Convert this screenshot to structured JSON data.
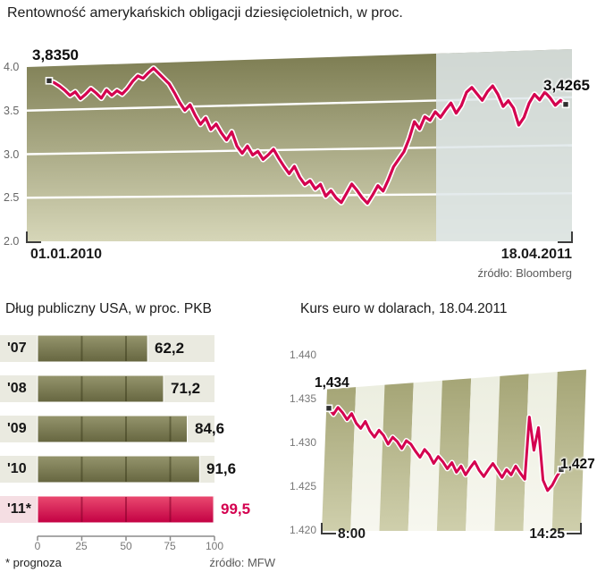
{
  "colors": {
    "red": "#d4004f",
    "olive": "#7b7b50",
    "overlay": "#dfe7ea"
  },
  "chart_data": [
    {
      "id": "bonds",
      "type": "line",
      "title": "Rentowność amerykańskich obligacji dziesięcioletnich, w proc.",
      "ylim": [
        2.0,
        4.0
      ],
      "y_ticks": [
        4.0,
        3.5,
        3.0,
        2.5,
        2.0
      ],
      "y_tick_labels": [
        "4.0",
        "3.5",
        "3.0",
        "2.5",
        "2.0"
      ],
      "x_start": "01.01.2010",
      "x_end": "18.04.2011",
      "first_value": 3.835,
      "first_label": "3,8350",
      "last_value": 3.4265,
      "last_label": "3,4265",
      "source": "źródło: Bloomberg",
      "grid": true,
      "legend": "none",
      "values": [
        3.835,
        3.81,
        3.77,
        3.72,
        3.66,
        3.7,
        3.62,
        3.67,
        3.73,
        3.68,
        3.62,
        3.71,
        3.65,
        3.7,
        3.66,
        3.72,
        3.8,
        3.86,
        3.83,
        3.89,
        3.94,
        3.88,
        3.82,
        3.76,
        3.66,
        3.55,
        3.46,
        3.52,
        3.4,
        3.3,
        3.37,
        3.24,
        3.3,
        3.2,
        3.12,
        3.21,
        3.05,
        2.97,
        3.05,
        2.95,
        2.99,
        2.9,
        2.95,
        3.01,
        2.91,
        2.82,
        2.74,
        2.82,
        2.7,
        2.62,
        2.66,
        2.57,
        2.62,
        2.49,
        2.55,
        2.47,
        2.42,
        2.52,
        2.62,
        2.55,
        2.47,
        2.41,
        2.5,
        2.6,
        2.54,
        2.66,
        2.8,
        2.88,
        2.96,
        3.1,
        3.28,
        3.2,
        3.33,
        3.29,
        3.38,
        3.32,
        3.4,
        3.47,
        3.36,
        3.44,
        3.58,
        3.63,
        3.56,
        3.49,
        3.58,
        3.64,
        3.55,
        3.42,
        3.48,
        3.4,
        3.22,
        3.3,
        3.45,
        3.54,
        3.48,
        3.56,
        3.5,
        3.42,
        3.47,
        3.4265
      ]
    },
    {
      "id": "debt",
      "type": "bar",
      "title": "Dług publiczny USA, w proc. PKB",
      "categories": [
        "'07",
        "'08",
        "'09",
        "'10",
        "'11*"
      ],
      "values": [
        62.2,
        71.2,
        84.6,
        91.6,
        99.5
      ],
      "value_labels": [
        "62,2",
        "71,2",
        "84,6",
        "91,6",
        "99,5"
      ],
      "xlim": [
        0,
        100
      ],
      "x_ticks": [
        0,
        25,
        50,
        75,
        100
      ],
      "x_tick_labels": [
        "0",
        "25",
        "50",
        "75",
        "100"
      ],
      "highlight_index": 4,
      "footnote": "* prognoza",
      "source": "źródło: MFW",
      "legend": "none"
    },
    {
      "id": "euro",
      "type": "line",
      "title": "Kurs euro w dolarach, 18.04.2011",
      "ylim": [
        1.42,
        1.44
      ],
      "y_ticks": [
        1.44,
        1.435,
        1.43,
        1.425,
        1.42
      ],
      "y_tick_labels": [
        "1.440",
        "1.435",
        "1.430",
        "1.425",
        "1.420"
      ],
      "x_start": "8:00",
      "x_end": "14:25",
      "first_value": 1.434,
      "first_label": "1,434",
      "last_value": 1.427,
      "last_label": "1,427",
      "legend": "none",
      "values": [
        1.434,
        1.4333,
        1.4341,
        1.4335,
        1.4327,
        1.4334,
        1.4323,
        1.4317,
        1.4325,
        1.4314,
        1.4307,
        1.4315,
        1.4309,
        1.4299,
        1.4307,
        1.4302,
        1.4294,
        1.4303,
        1.4299,
        1.4291,
        1.4284,
        1.4293,
        1.4287,
        1.4277,
        1.4285,
        1.4279,
        1.4271,
        1.4278,
        1.4267,
        1.4274,
        1.4264,
        1.4272,
        1.4279,
        1.4269,
        1.4262,
        1.427,
        1.4277,
        1.4269,
        1.4261,
        1.427,
        1.4264,
        1.4274,
        1.4266,
        1.4259,
        1.433,
        1.4292,
        1.4318,
        1.4258,
        1.4246,
        1.4252,
        1.4262,
        1.427
      ]
    }
  ]
}
